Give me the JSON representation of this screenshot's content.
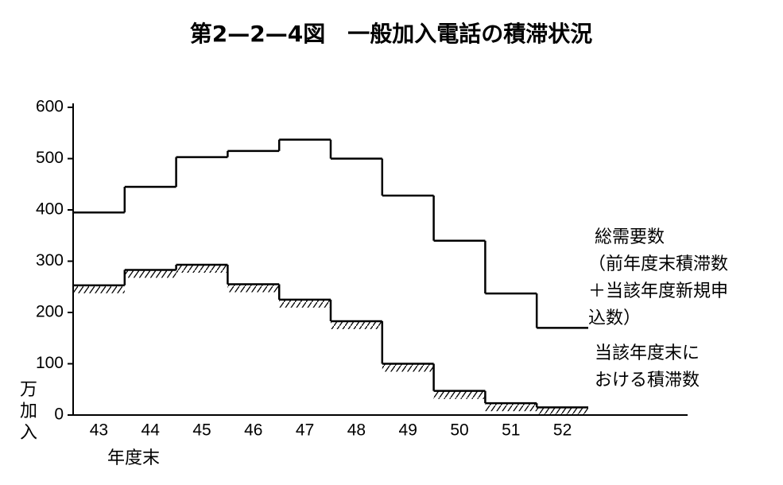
{
  "chart_data": {
    "type": "step",
    "title": "第2—2—4図　一般加入電話の積滞状況",
    "y_label_lines": [
      "万",
      "加",
      "入"
    ],
    "x_label": "年度末",
    "categories": [
      "43",
      "44",
      "45",
      "46",
      "47",
      "48",
      "49",
      "50",
      "51",
      "52"
    ],
    "ylim": [
      0,
      600
    ],
    "yticks": [
      0,
      100,
      200,
      300,
      400,
      500,
      600
    ],
    "series": [
      {
        "label_lines": [
          "総需要数",
          "（前年度末積滞数",
          "＋当該年度新規申",
          "込数）"
        ],
        "color": "#000000",
        "hatch": false,
        "values": [
          395,
          445,
          503,
          515,
          537,
          500,
          428,
          340,
          237,
          170
        ]
      },
      {
        "label_lines": [
          "当該年度末に",
          "おける積滞数"
        ],
        "color": "#000000",
        "hatch": true,
        "values": [
          253,
          283,
          293,
          255,
          225,
          183,
          100,
          47,
          23,
          15
        ]
      }
    ]
  }
}
